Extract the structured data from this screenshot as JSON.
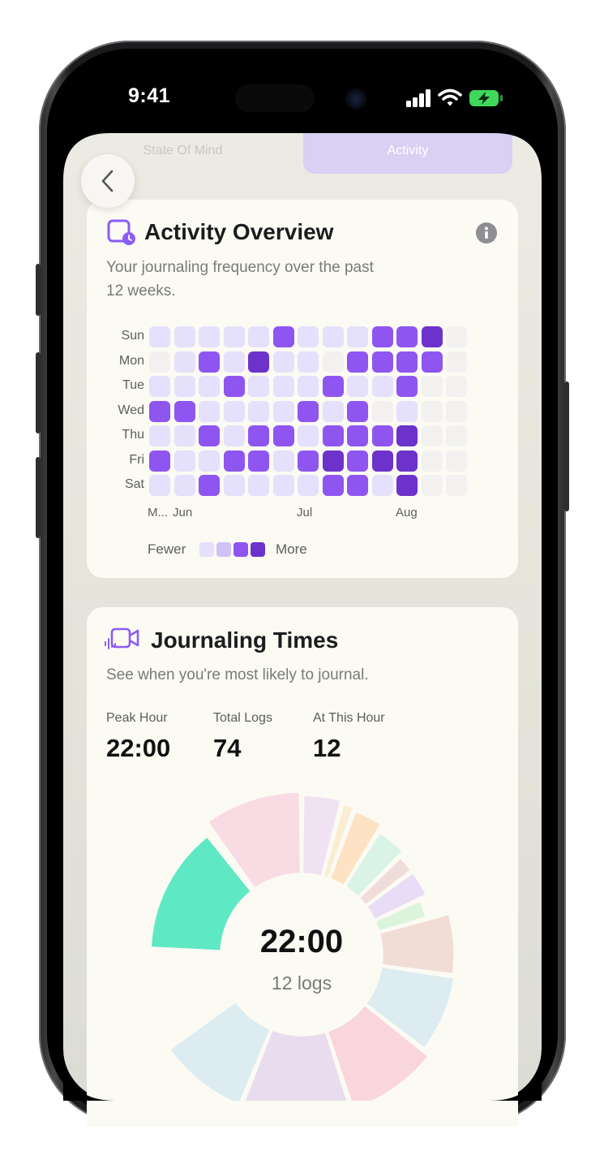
{
  "status_bar": {
    "time": "9:41"
  },
  "tabs": {
    "state_of_mind": "State Of Mind",
    "activity": "Activity",
    "active": "Activity"
  },
  "activity_overview": {
    "title": "Activity Overview",
    "subtitle_line1": "Your journaling frequency over the past",
    "subtitle_line2": "12 weeks.",
    "days": [
      "Sun",
      "Mon",
      "Tue",
      "Wed",
      "Thu",
      "Fri",
      "Sat"
    ],
    "month_labels": [
      {
        "label": "M...",
        "col": 0
      },
      {
        "label": "Jun",
        "col": 1
      },
      {
        "label": "Jul",
        "col": 6
      },
      {
        "label": "Aug",
        "col": 10
      }
    ],
    "legend_fewer": "Fewer",
    "legend_more": "More",
    "levels": [
      "1111121112230",
      "0121311022220",
      "1112111211200",
      "2211112120100",
      "1121221222300",
      "2112212323300",
      "1121111221300"
    ]
  },
  "journaling_times": {
    "title": "Journaling Times",
    "subtitle": "See when you're most likely to journal.",
    "stats": [
      {
        "label": "Peak Hour",
        "value": "22:00"
      },
      {
        "label": "Total Logs",
        "value": "74"
      },
      {
        "label": "At This Hour",
        "value": "12"
      }
    ],
    "center_time": "22:00",
    "center_label": "12 logs",
    "selected_hour": 22
  },
  "colors": {
    "accent": "#8b5cf6",
    "heat_levels": [
      "#f2f1f0",
      "#e5e0fb",
      "#8f55f0",
      "#6d32cb"
    ],
    "selected_segment": "#5ee8c3"
  }
}
